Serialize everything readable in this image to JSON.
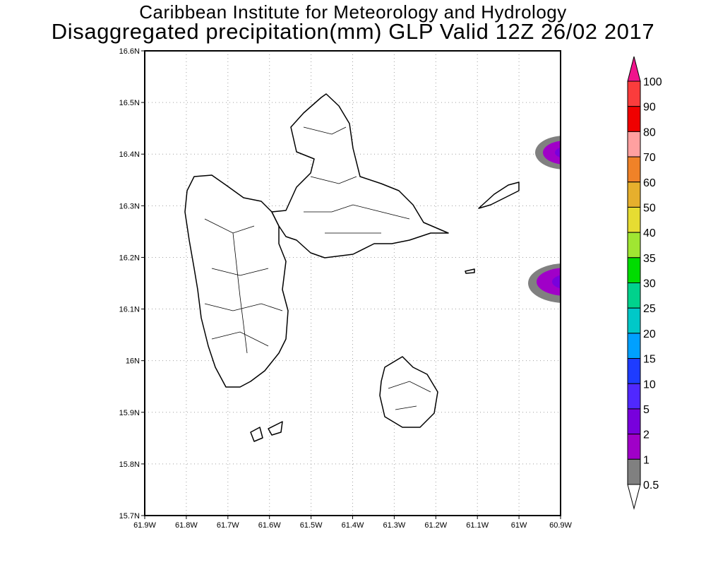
{
  "title": {
    "line1": "Caribbean Institute for Meteorology and Hydrology",
    "line2": "Disaggregated precipitation(mm) GLP Valid 12Z 26/02 2017"
  },
  "map": {
    "lon_range": [
      -61.9,
      -60.9
    ],
    "lat_range": [
      15.7,
      16.6
    ],
    "lon_ticks": [
      "61.9W",
      "61.8W",
      "61.7W",
      "61.6W",
      "61.5W",
      "61.4W",
      "61.3W",
      "61.2W",
      "61.1W",
      "61W",
      "60.9W"
    ],
    "lat_ticks": [
      "15.7N",
      "15.8N",
      "15.9N",
      "16N",
      "16.1N",
      "16.2N",
      "16.3N",
      "16.4N",
      "16.5N",
      "16.6N"
    ]
  },
  "colorbar": {
    "labels": [
      "100",
      "90",
      "80",
      "70",
      "60",
      "50",
      "40",
      "35",
      "30",
      "25",
      "20",
      "15",
      "10",
      "5",
      "2",
      "1",
      "0.5"
    ],
    "colors": [
      "#fa3c3c",
      "#f00000",
      "#ffa0a0",
      "#f08228",
      "#e6af2d",
      "#e6dc32",
      "#a0e632",
      "#00dc00",
      "#00d28c",
      "#00c8c8",
      "#00a0ff",
      "#1e3cff",
      "#5028ff",
      "#7800dc",
      "#a000c8",
      "#808080"
    ],
    "over_color": "#f0148c",
    "under_color": "#ffffff"
  }
}
